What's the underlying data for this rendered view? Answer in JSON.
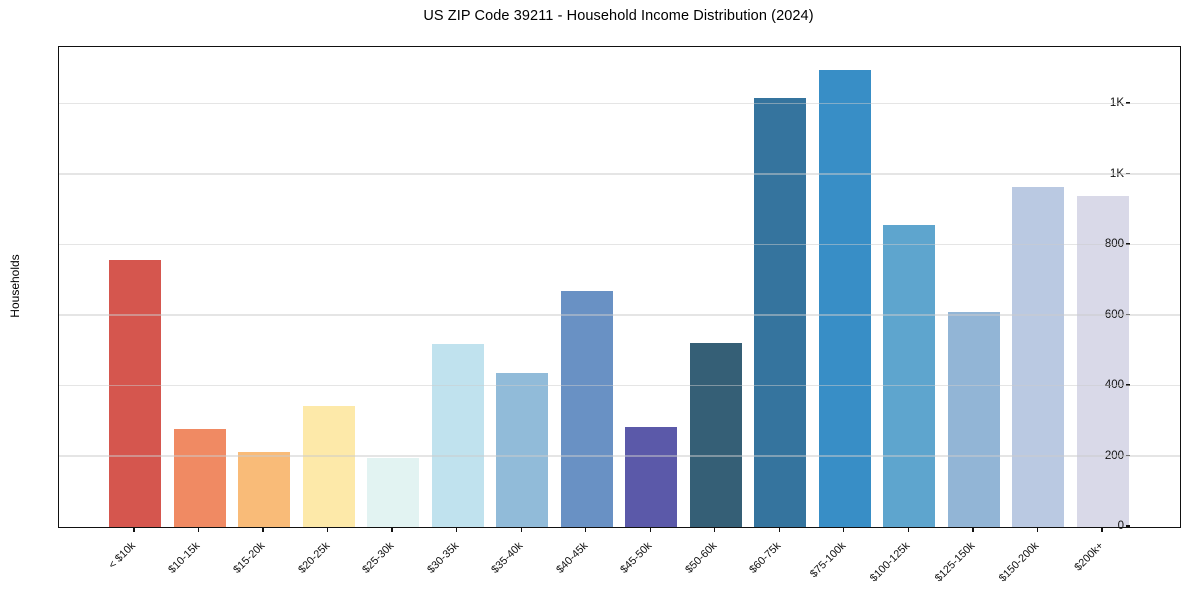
{
  "chart_data": {
    "type": "bar",
    "title": "US ZIP Code 39211 - Household Income Distribution (2024)",
    "xlabel": "",
    "ylabel": "Households",
    "categories": [
      "< $10k",
      "$10-15k",
      "$15-20k",
      "$20-25k",
      "$25-30k",
      "$30-35k",
      "$35-40k",
      "$40-45k",
      "$45-50k",
      "$50-60k",
      "$60-75k",
      "$75-100k",
      "$100-125k",
      "$125-150k",
      "$150-200k",
      "$200k+"
    ],
    "values": [
      758,
      278,
      213,
      342,
      196,
      520,
      437,
      670,
      285,
      522,
      1218,
      1297,
      857,
      610,
      966,
      940
    ],
    "bar_colors": [
      "#d5564e",
      "#f08a63",
      "#f9bb78",
      "#fde9a9",
      "#e2f3f2",
      "#c0e2ee",
      "#91bbd9",
      "#6991c4",
      "#5b59a9",
      "#355f76",
      "#35749e",
      "#388ec6",
      "#5ea5ce",
      "#92b5d6",
      "#bac9e2",
      "#d9d9e8"
    ],
    "ylim": [
      0,
      1362
    ],
    "ytick_values": [
      0,
      200,
      400,
      600,
      800,
      1000,
      1200
    ],
    "ytick_labels": [
      "0",
      "200",
      "400",
      "600",
      "800",
      "1K",
      "1K"
    ],
    "grid": "horizontal",
    "legend": "none",
    "background_color": "#ffffff",
    "spine_color": "#111111"
  }
}
